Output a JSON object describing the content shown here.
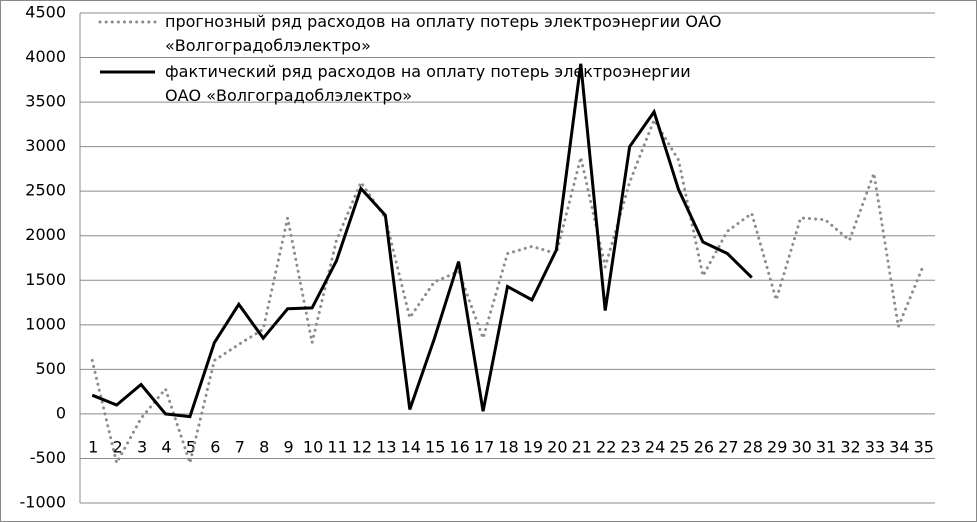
{
  "chart_data": {
    "type": "line",
    "categories": [
      "1",
      "2",
      "3",
      "4",
      "5",
      "6",
      "7",
      "8",
      "9",
      "10",
      "11",
      "12",
      "13",
      "14",
      "15",
      "16",
      "17",
      "18",
      "19",
      "20",
      "21",
      "22",
      "23",
      "24",
      "25",
      "26",
      "27",
      "28",
      "29",
      "30",
      "31",
      "32",
      "33",
      "34",
      "35"
    ],
    "series": [
      {
        "name": "прогнозный ряд расходов на оплату потерь электроэнергии ОАО «Волгоградоблэлектро»",
        "color": "#8c8c8c",
        "style": "dotted",
        "values": [
          600,
          -550,
          -50,
          280,
          -550,
          600,
          780,
          950,
          2200,
          800,
          1950,
          2600,
          2200,
          1080,
          1480,
          1600,
          850,
          1800,
          1880,
          1800,
          2880,
          1650,
          2600,
          3300,
          2850,
          1550,
          2050,
          2250,
          1280,
          2200,
          2180,
          1950,
          2700,
          980,
          1650
        ]
      },
      {
        "name": "фактический ряд расходов на оплату потерь электроэнергии ОАО «Волгоградоблэлектро»",
        "color": "#000000",
        "style": "solid",
        "values": [
          210,
          100,
          330,
          0,
          -30,
          800,
          1230,
          850,
          1180,
          1190,
          1720,
          2530,
          2230,
          50,
          840,
          1710,
          30,
          1430,
          1280,
          1840,
          3930,
          1160,
          3000,
          3390,
          2520,
          1930,
          1800,
          1530,
          null,
          null,
          null,
          null,
          null,
          null,
          null
        ]
      }
    ],
    "ylim": [
      -1000,
      4500
    ],
    "yticks": [
      -1000,
      -500,
      0,
      500,
      1000,
      1500,
      2000,
      2500,
      3000,
      3500,
      4000,
      4500
    ],
    "grid": true
  }
}
